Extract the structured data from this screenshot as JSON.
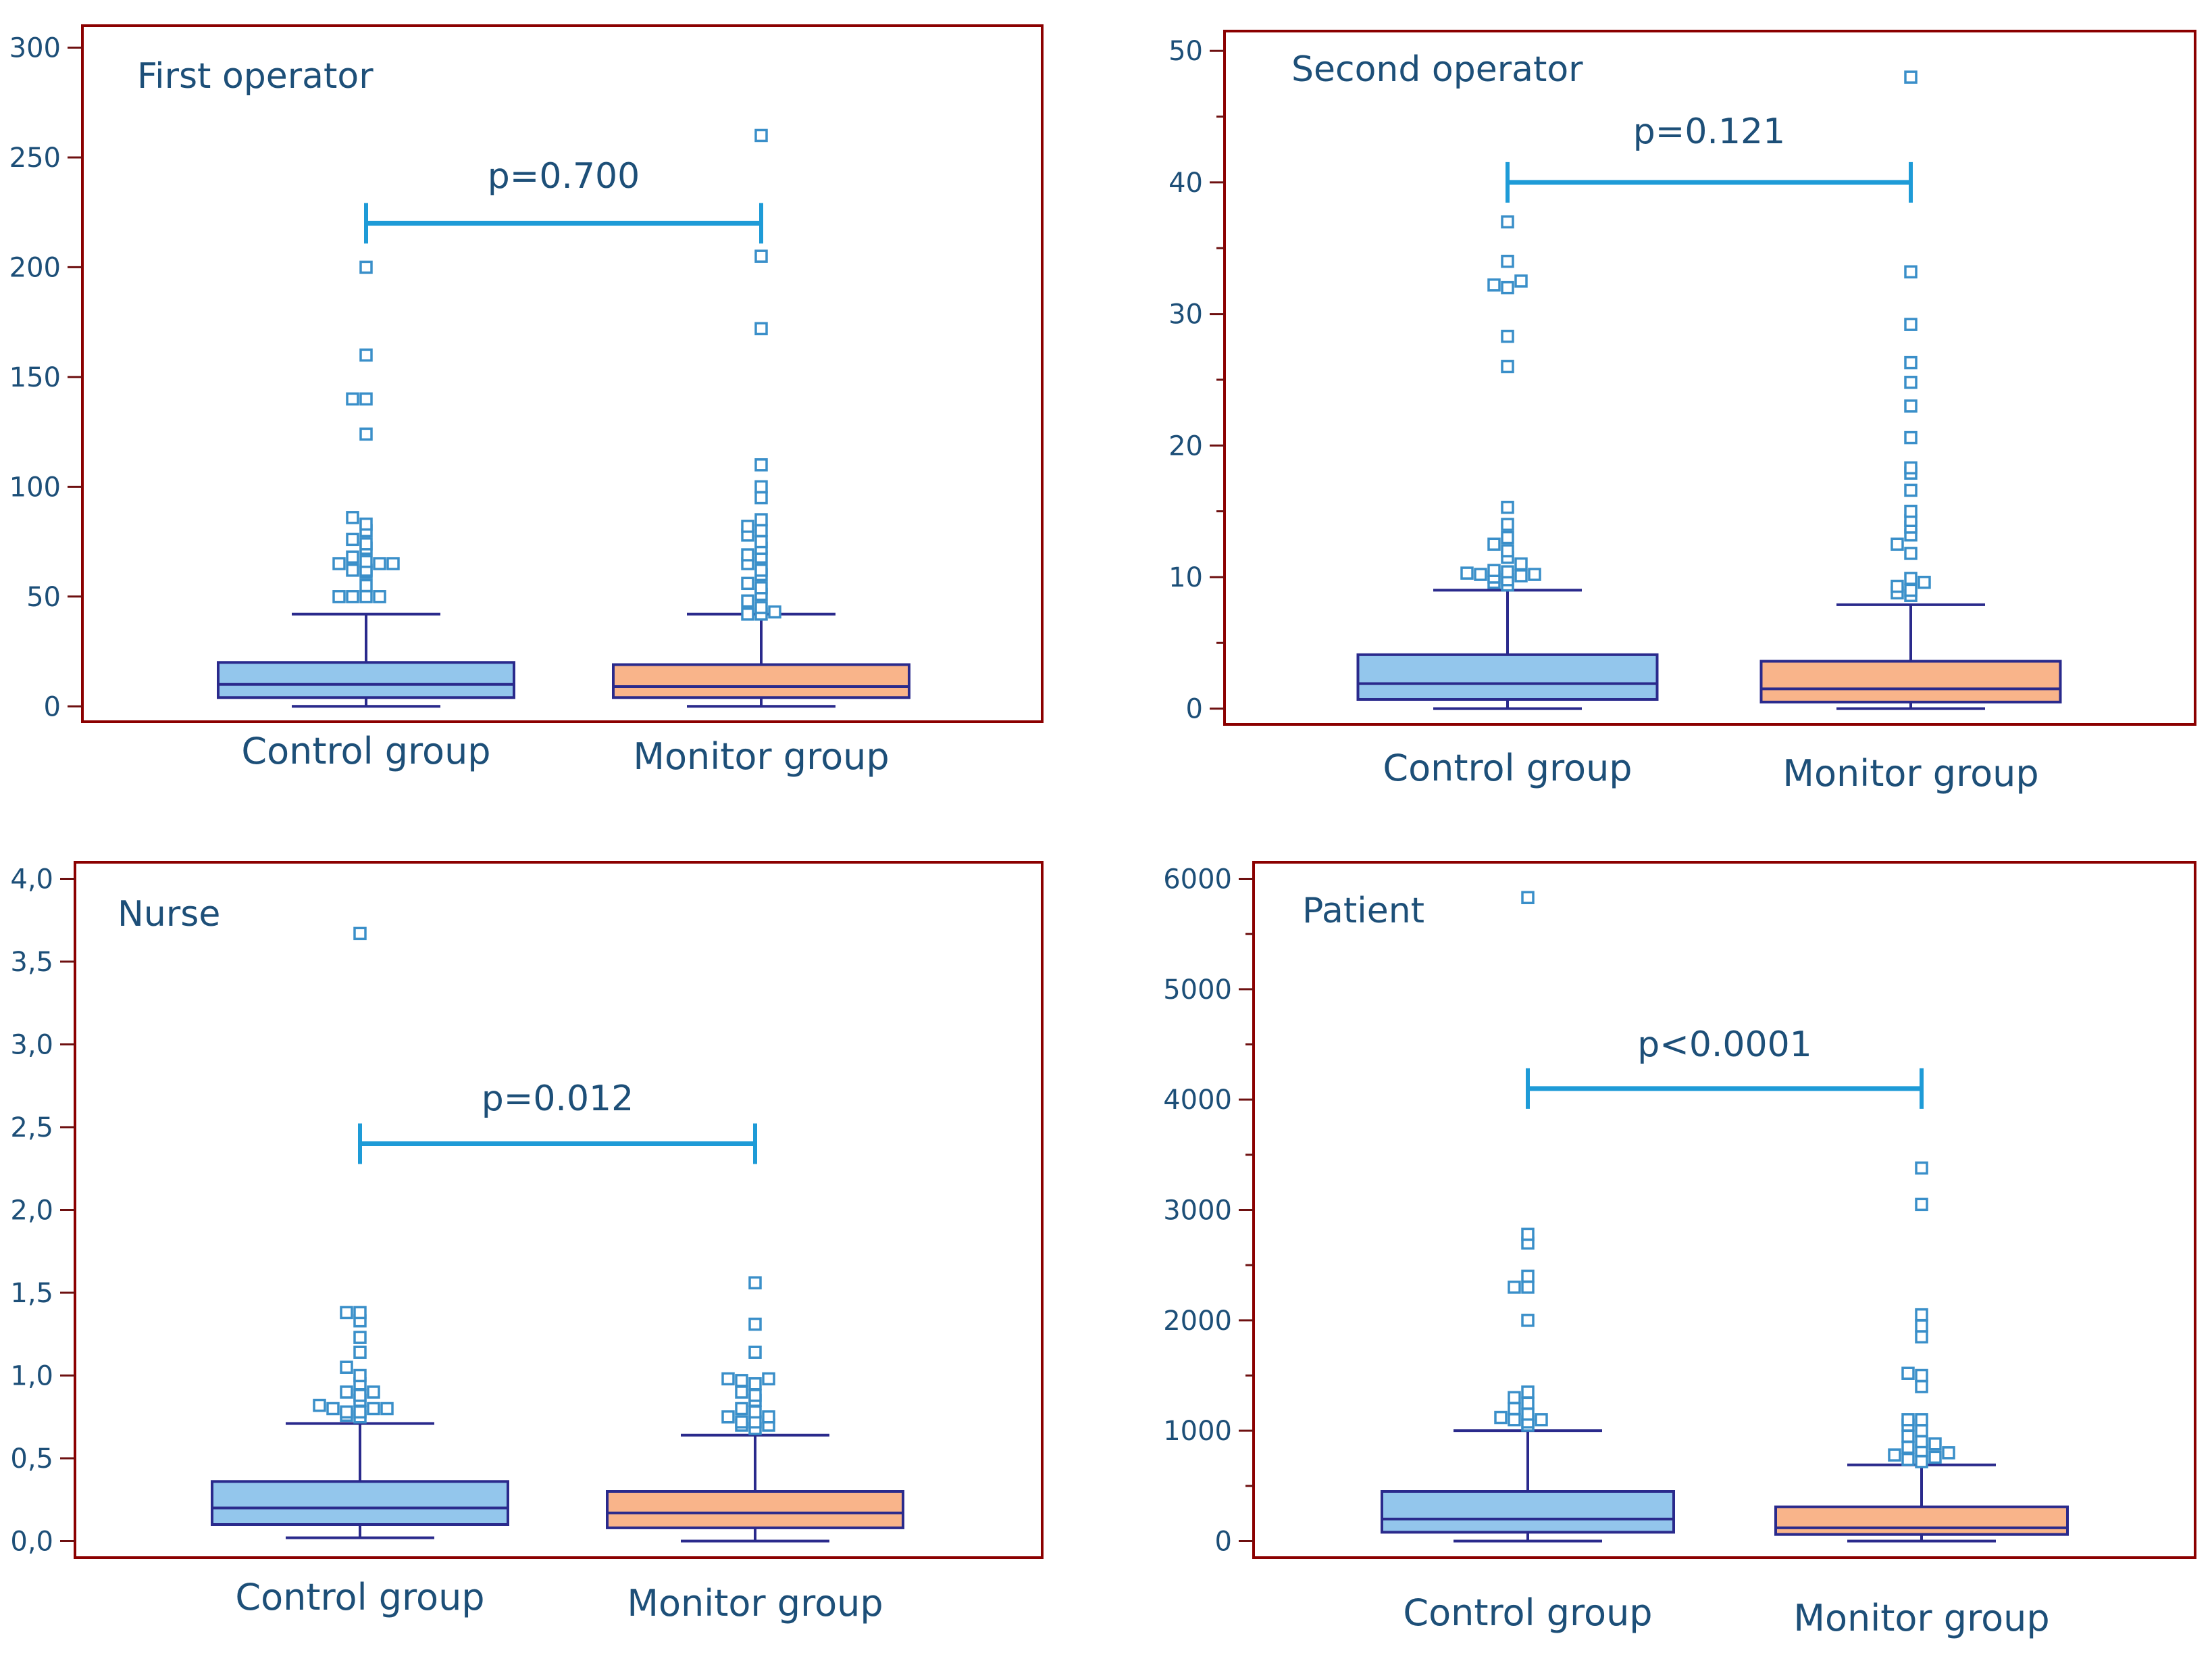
{
  "colors": {
    "frame": "#8b0000",
    "axis": "#6e1010",
    "text": "#1d4f78",
    "box_control": "#93c6ec",
    "box_monitor": "#f9b48a",
    "box_stroke": "#2a2a8c",
    "outlier": "#3a8fc9",
    "bracket": "#1e9bd7"
  },
  "chart_data": [
    {
      "type": "box",
      "title": "First operator",
      "categories": [
        "Control group",
        "Monitor group"
      ],
      "yticks": [
        0,
        50,
        100,
        150,
        200,
        250,
        300
      ],
      "ytick_labels": [
        "0",
        "50",
        "100",
        "150",
        "200",
        "250",
        "300"
      ],
      "ylim": [
        -7,
        310
      ],
      "minor_ticks": false,
      "p_value": "p=0.700",
      "bracket_y": 220,
      "series": [
        {
          "name": "Control group",
          "min": 0,
          "q1": 4,
          "median": 10,
          "q3": 20,
          "whisker_high": 42,
          "outliers": [
            50,
            50,
            50,
            50,
            55,
            61,
            62,
            62,
            65,
            65,
            65,
            66,
            68,
            72,
            74,
            76,
            80,
            83,
            86,
            124,
            140,
            140,
            160,
            200
          ]
        },
        {
          "name": "Monitor group",
          "min": 0,
          "q1": 4,
          "median": 9,
          "q3": 19,
          "whisker_high": 42,
          "outliers": [
            42,
            42,
            43,
            45,
            48,
            51,
            54,
            56,
            60,
            62,
            65,
            68,
            69,
            72,
            75,
            78,
            80,
            82,
            85,
            95,
            100,
            110,
            172,
            205,
            260
          ]
        }
      ]
    },
    {
      "type": "box",
      "title": "Second operator",
      "categories": [
        "Control group",
        "Monitor group"
      ],
      "yticks": [
        0,
        10,
        20,
        30,
        40,
        50
      ],
      "ytick_labels": [
        "0",
        "10",
        "20",
        "30",
        "40",
        "50"
      ],
      "ylim": [
        -1.2,
        51.5
      ],
      "minor_ticks": true,
      "p_value": "p=0.121",
      "bracket_y": 40,
      "series": [
        {
          "name": "Control group",
          "min": 0,
          "q1": 0.7,
          "median": 1.9,
          "q3": 4.1,
          "whisker_high": 9,
          "outliers": [
            9.4,
            9.6,
            9.8,
            10,
            10.1,
            10.2,
            10.2,
            10.3,
            10.4,
            10.5,
            11,
            11.5,
            12,
            12.5,
            13,
            14,
            15.3,
            26,
            28.3,
            32,
            32.2,
            32.5,
            34,
            37
          ]
        },
        {
          "name": "Monitor group",
          "min": 0,
          "q1": 0.5,
          "median": 1.5,
          "q3": 3.6,
          "whisker_high": 7.9,
          "outliers": [
            8.6,
            8.8,
            9,
            9.3,
            9.6,
            9.9,
            11.8,
            12.5,
            13.2,
            13.8,
            14.3,
            15,
            16.6,
            17.9,
            18.3,
            20.6,
            23,
            24.8,
            26.3,
            29.2,
            33.2,
            48
          ]
        }
      ]
    },
    {
      "type": "box",
      "title": "Nurse",
      "categories": [
        "Control group",
        "Monitor group"
      ],
      "yticks": [
        0,
        0.5,
        1,
        1.5,
        2,
        2.5,
        3,
        3.5,
        4
      ],
      "ytick_labels": [
        "0,0",
        "0,5",
        "1,0",
        "1,5",
        "2,0",
        "2,5",
        "3,0",
        "3,5",
        "4,0"
      ],
      "ylim": [
        -0.1,
        4.1
      ],
      "minor_ticks": false,
      "p_value": "p=0.012",
      "bracket_y": 2.4,
      "series": [
        {
          "name": "Control group",
          "min": 0.02,
          "q1": 0.1,
          "median": 0.2,
          "q3": 0.36,
          "whisker_high": 0.71,
          "outliers": [
            0.75,
            0.76,
            0.78,
            0.78,
            0.8,
            0.8,
            0.8,
            0.82,
            0.85,
            0.88,
            0.9,
            0.9,
            0.95,
            1,
            1.05,
            1.14,
            1.23,
            1.33,
            1.38,
            1.38,
            3.67
          ]
        },
        {
          "name": "Monitor group",
          "min": 0,
          "q1": 0.08,
          "median": 0.17,
          "q3": 0.3,
          "whisker_high": 0.64,
          "outliers": [
            0.68,
            0.7,
            0.7,
            0.72,
            0.72,
            0.75,
            0.75,
            0.78,
            0.8,
            0.85,
            0.88,
            0.9,
            0.95,
            0.97,
            0.98,
            0.98,
            1.14,
            1.31,
            1.56
          ]
        }
      ]
    },
    {
      "type": "box",
      "title": "Patient",
      "categories": [
        "Control group",
        "Monitor group"
      ],
      "yticks": [
        0,
        1000,
        2000,
        3000,
        4000,
        5000,
        6000
      ],
      "ytick_labels": [
        "0",
        "1000",
        "2000",
        "3000",
        "4000",
        "5000",
        "6000"
      ],
      "ylim": [
        -150,
        6150
      ],
      "minor_ticks": true,
      "p_value": "p<0.0001",
      "bracket_y": 4100,
      "series": [
        {
          "name": "Control group",
          "min": 0,
          "q1": 80,
          "median": 200,
          "q3": 450,
          "whisker_high": 1000,
          "outliers": [
            1050,
            1080,
            1100,
            1100,
            1120,
            1150,
            1200,
            1250,
            1300,
            1350,
            2000,
            2300,
            2300,
            2400,
            2700,
            2780,
            5830
          ]
        },
        {
          "name": "Monitor group",
          "min": 0,
          "q1": 60,
          "median": 120,
          "q3": 310,
          "whisker_high": 690,
          "outliers": [
            720,
            740,
            760,
            780,
            800,
            820,
            850,
            880,
            900,
            950,
            1000,
            1050,
            1100,
            1100,
            1400,
            1500,
            1520,
            1850,
            1950,
            2050,
            3050,
            3380
          ]
        }
      ]
    }
  ]
}
